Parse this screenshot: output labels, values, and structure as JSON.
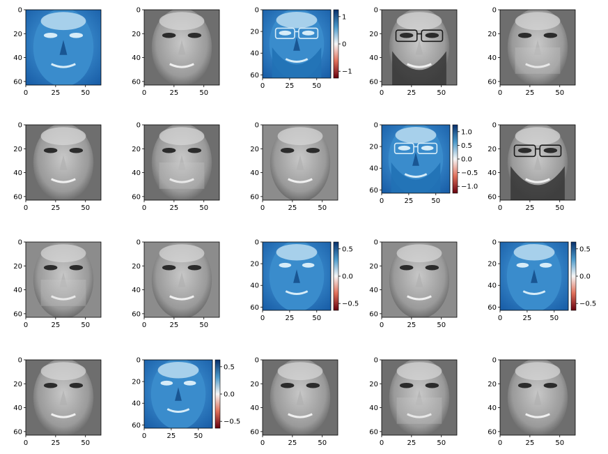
{
  "figure": {
    "rows": 4,
    "cols": 5,
    "x_ticks": [
      "0",
      "25",
      "50"
    ],
    "y_ticks": [
      "0",
      "20",
      "40",
      "60"
    ],
    "panels": [
      {
        "kind": "map",
        "face": "man-bald",
        "colorbar": null
      },
      {
        "kind": "photo",
        "face": "man-bald",
        "colorbar": null
      },
      {
        "kind": "map",
        "face": "man-glasses-beard",
        "colorbar": {
          "ticks": [
            "1",
            "0",
            "−1"
          ]
        }
      },
      {
        "kind": "photo",
        "face": "man-glasses-beard",
        "colorbar": null
      },
      {
        "kind": "photo",
        "face": "man-blend",
        "colorbar": null
      },
      {
        "kind": "photo",
        "face": "young-man",
        "colorbar": null
      },
      {
        "kind": "photo",
        "face": "man-blend",
        "colorbar": null
      },
      {
        "kind": "photo",
        "face": "older-woman",
        "colorbar": null
      },
      {
        "kind": "map",
        "face": "man-glasses-beard",
        "colorbar": {
          "ticks": [
            "1.0",
            "0.5",
            "0.0",
            "−0.5",
            "−1.0"
          ]
        }
      },
      {
        "kind": "photo",
        "face": "man-glasses-beard",
        "colorbar": null
      },
      {
        "kind": "photo",
        "face": "woman-blend",
        "colorbar": null
      },
      {
        "kind": "photo",
        "face": "woman-smile",
        "colorbar": null
      },
      {
        "kind": "map",
        "face": "woman-smile",
        "colorbar": {
          "ticks": [
            "0.5",
            "0.0",
            "−0.5"
          ]
        }
      },
      {
        "kind": "photo",
        "face": "woman-smile",
        "colorbar": null
      },
      {
        "kind": "map",
        "face": "woman-smile",
        "colorbar": {
          "ticks": [
            "0.5",
            "0.0",
            "−0.5"
          ]
        }
      },
      {
        "kind": "photo",
        "face": "man-bald",
        "colorbar": null
      },
      {
        "kind": "map",
        "face": "young-man",
        "colorbar": {
          "ticks": [
            "0.5",
            "0.0",
            "−0.5"
          ]
        }
      },
      {
        "kind": "photo",
        "face": "young-man",
        "colorbar": null
      },
      {
        "kind": "photo",
        "face": "man-blend",
        "colorbar": null
      },
      {
        "kind": "photo",
        "face": "young-man-2",
        "colorbar": null
      }
    ]
  }
}
